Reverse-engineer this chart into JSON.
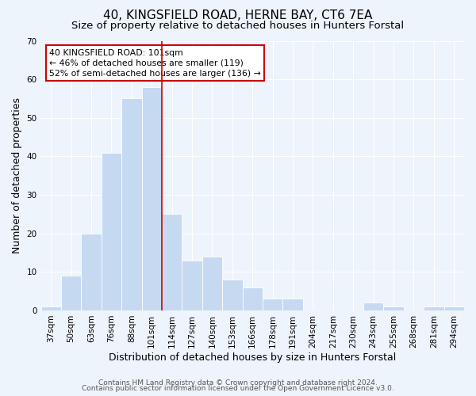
{
  "title": "40, KINGSFIELD ROAD, HERNE BAY, CT6 7EA",
  "subtitle": "Size of property relative to detached houses in Hunters Forstal",
  "xlabel": "Distribution of detached houses by size in Hunters Forstal",
  "ylabel": "Number of detached properties",
  "bar_labels": [
    "37sqm",
    "50sqm",
    "63sqm",
    "76sqm",
    "88sqm",
    "101sqm",
    "114sqm",
    "127sqm",
    "140sqm",
    "153sqm",
    "166sqm",
    "178sqm",
    "191sqm",
    "204sqm",
    "217sqm",
    "230sqm",
    "243sqm",
    "255sqm",
    "268sqm",
    "281sqm",
    "294sqm"
  ],
  "bar_values": [
    1,
    9,
    20,
    41,
    55,
    58,
    25,
    13,
    14,
    8,
    6,
    3,
    3,
    0,
    0,
    0,
    2,
    1,
    0,
    1,
    1
  ],
  "bar_color": "#c5d9f0",
  "vline_color": "#cc0000",
  "vline_x": 5.5,
  "ylim": [
    0,
    70
  ],
  "yticks": [
    0,
    10,
    20,
    30,
    40,
    50,
    60,
    70
  ],
  "annotation_line1": "40 KINGSFIELD ROAD: 101sqm",
  "annotation_line2": "← 46% of detached houses are smaller (119)",
  "annotation_line3": "52% of semi-detached houses are larger (136) →",
  "footer_line1": "Contains HM Land Registry data © Crown copyright and database right 2024.",
  "footer_line2": "Contains public sector information licensed under the Open Government Licence v3.0.",
  "background_color": "#eef4fb",
  "plot_bg_color": "#eef4fb",
  "grid_color": "#ffffff",
  "title_fontsize": 11,
  "subtitle_fontsize": 9.5,
  "axis_label_fontsize": 9,
  "tick_fontsize": 7.5,
  "footer_fontsize": 6.5
}
